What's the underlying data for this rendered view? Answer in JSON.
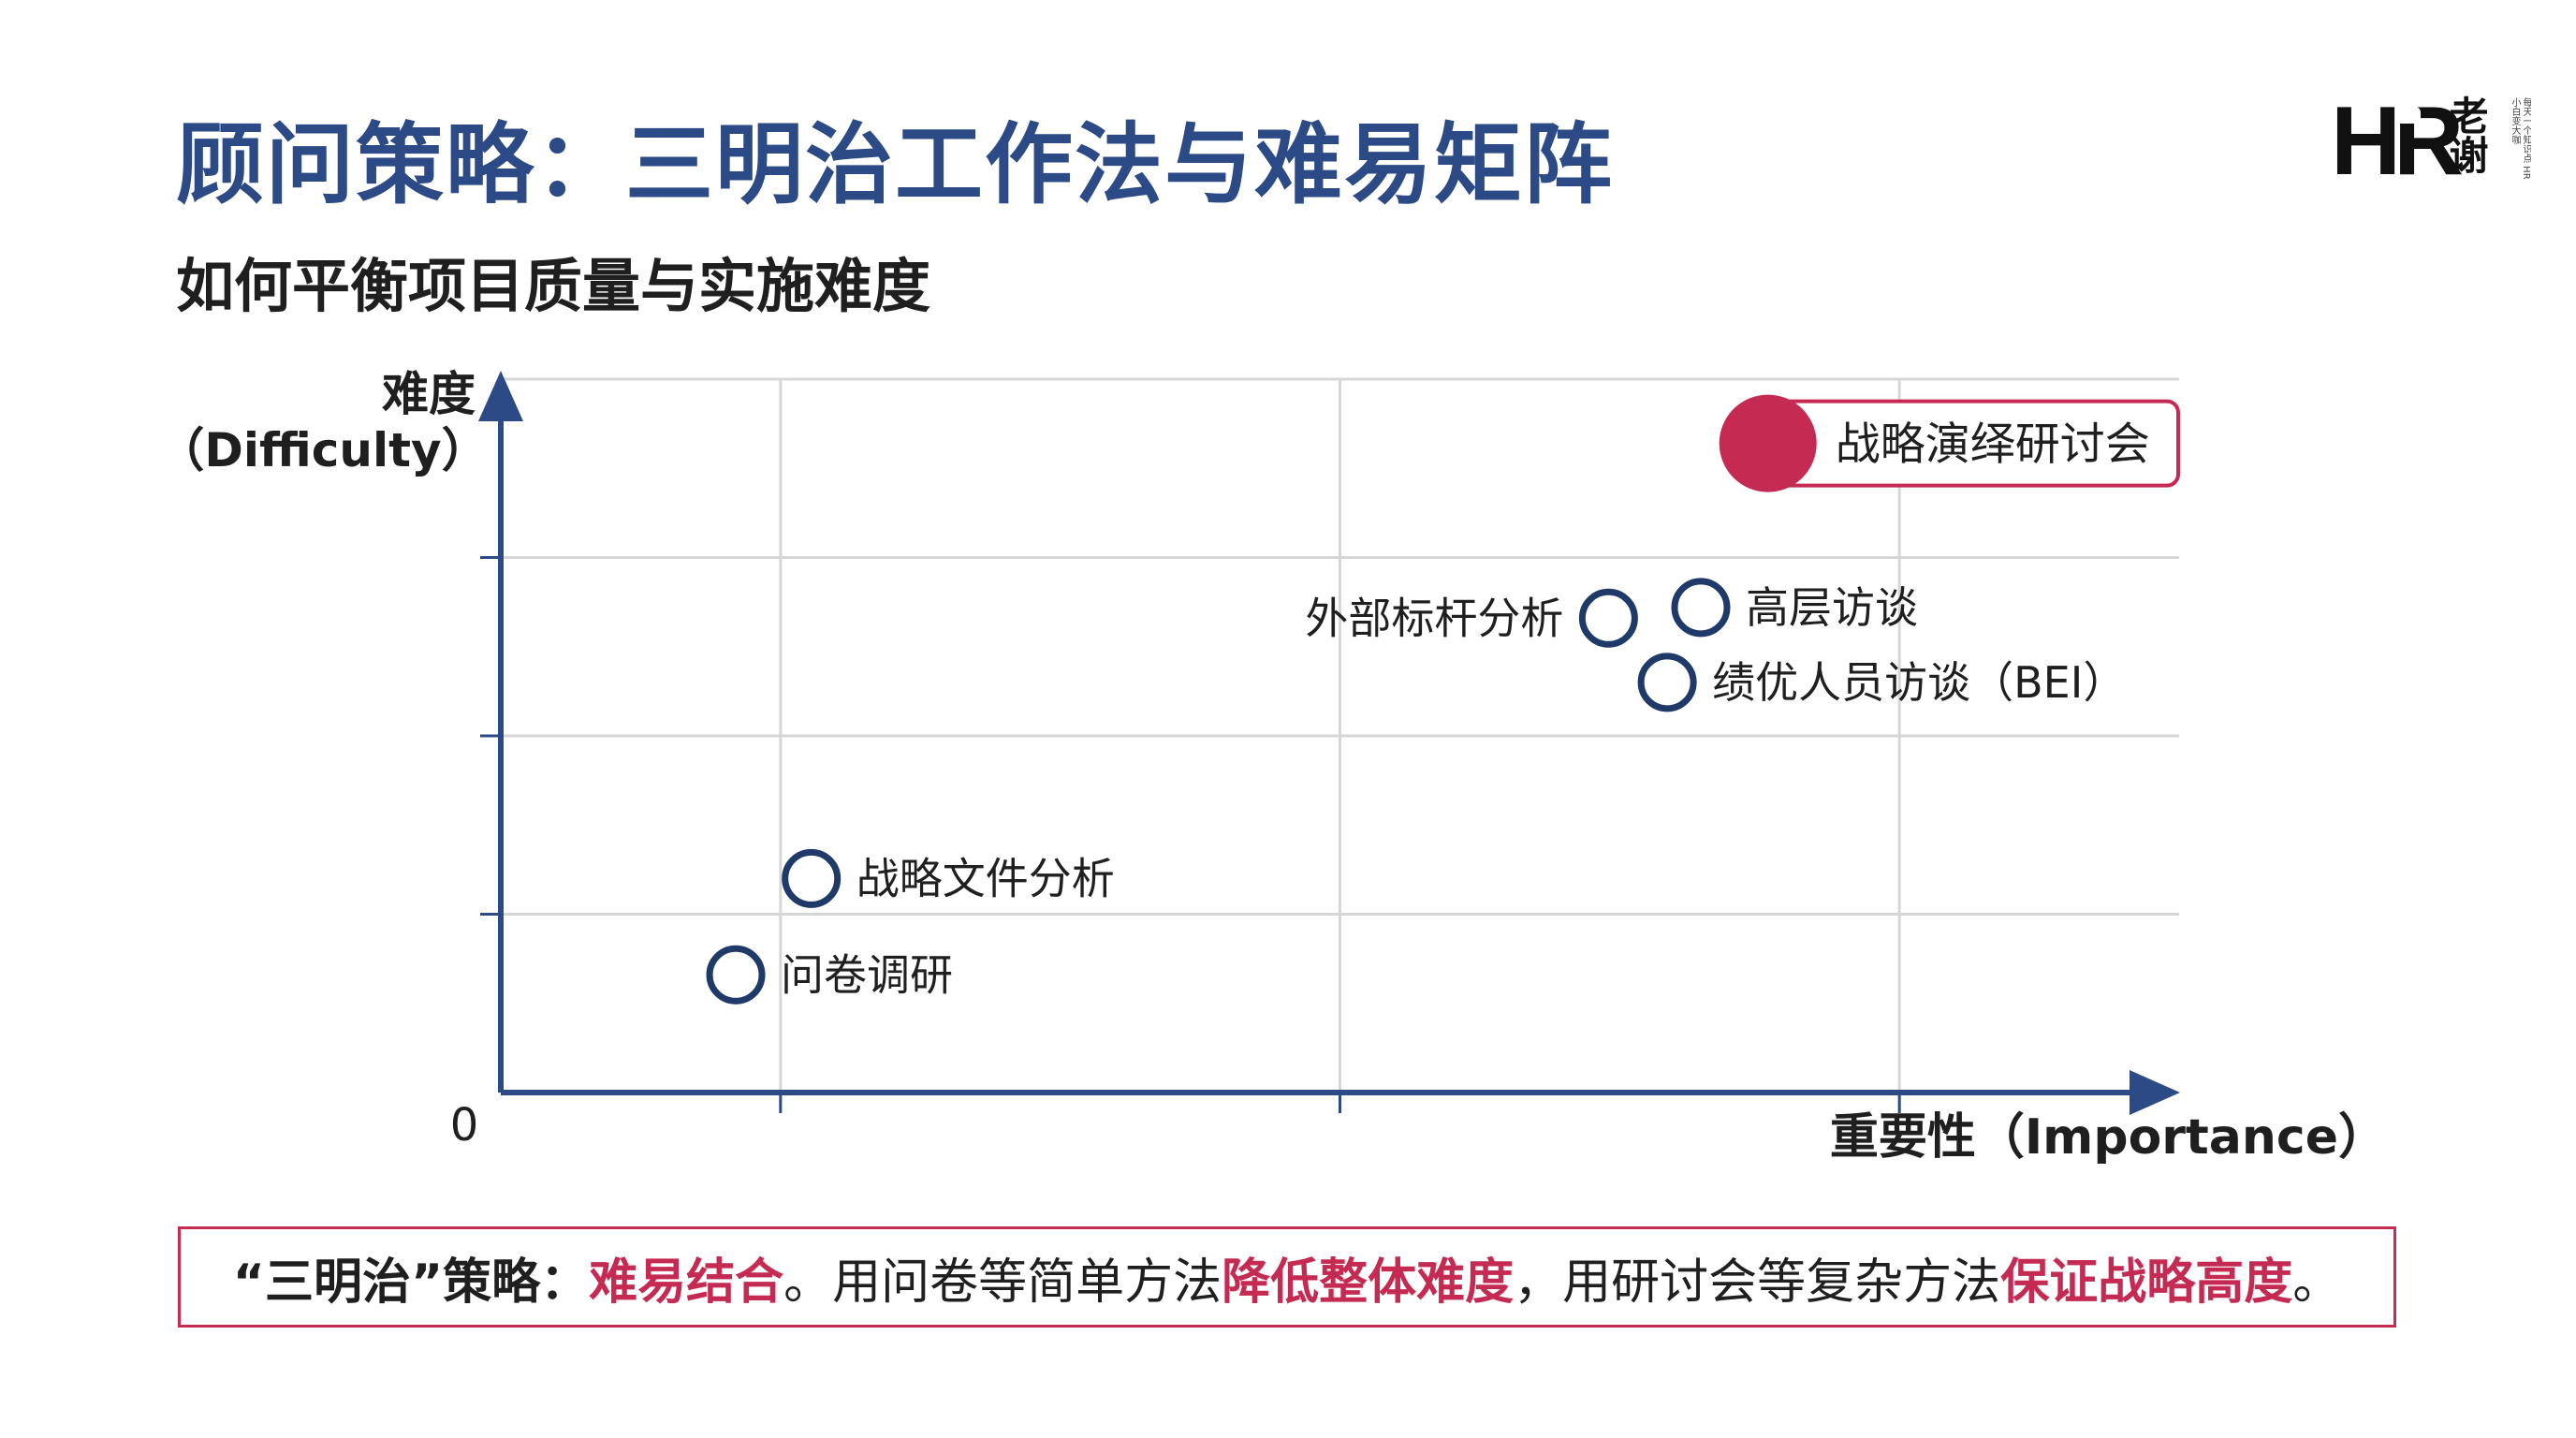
{
  "header": {
    "title": "顾问策略：三明治工作法与难易矩阵",
    "subtitle": "如何平衡项目质量与实施难度"
  },
  "logo": {
    "mark": "HR",
    "name": "老谢",
    "tagline": "每天一个知识点 HR小白变大咖"
  },
  "chart_data": {
    "type": "scatter",
    "title": "",
    "xlabel": "重要性（Importance）",
    "ylabel": "难度",
    "ylabel_en": "（Difficulty）",
    "origin_label": "0",
    "xlim": [
      0,
      10
    ],
    "ylim": [
      0,
      10
    ],
    "grid": true,
    "points": [
      {
        "label": "问卷调研",
        "x": 1.4,
        "y": 1.65,
        "style": "hollow",
        "label_side": "right"
      },
      {
        "label": "战略文件分析",
        "x": 1.85,
        "y": 3.0,
        "style": "hollow",
        "label_side": "right"
      },
      {
        "label": "外部标杆分析",
        "x": 6.6,
        "y": 6.65,
        "style": "hollow",
        "label_side": "left"
      },
      {
        "label": "高层访谈",
        "x": 7.15,
        "y": 6.8,
        "style": "hollow",
        "label_side": "right"
      },
      {
        "label": "绩优人员访谈（BEI）",
        "x": 6.95,
        "y": 5.75,
        "style": "hollow",
        "label_side": "right"
      },
      {
        "label": "战略演绎研讨会",
        "x": 7.55,
        "y": 9.1,
        "style": "filled-highlight",
        "label_side": "right"
      }
    ],
    "colors": {
      "axis": "#2b4a86",
      "grid": "#d6d6d6",
      "point": "#1f3a68",
      "highlight": "#c42a52"
    }
  },
  "footer": {
    "segments": [
      {
        "text": "“三明治”策略：",
        "style": "bold"
      },
      {
        "text": "难易结合",
        "style": "accent"
      },
      {
        "text": "。用问卷等简单方法",
        "style": "normal"
      },
      {
        "text": "降低整体难度",
        "style": "accent"
      },
      {
        "text": "，用研讨会等复杂方法",
        "style": "normal"
      },
      {
        "text": "保证战略高度",
        "style": "accent"
      },
      {
        "text": "。",
        "style": "normal"
      }
    ]
  }
}
